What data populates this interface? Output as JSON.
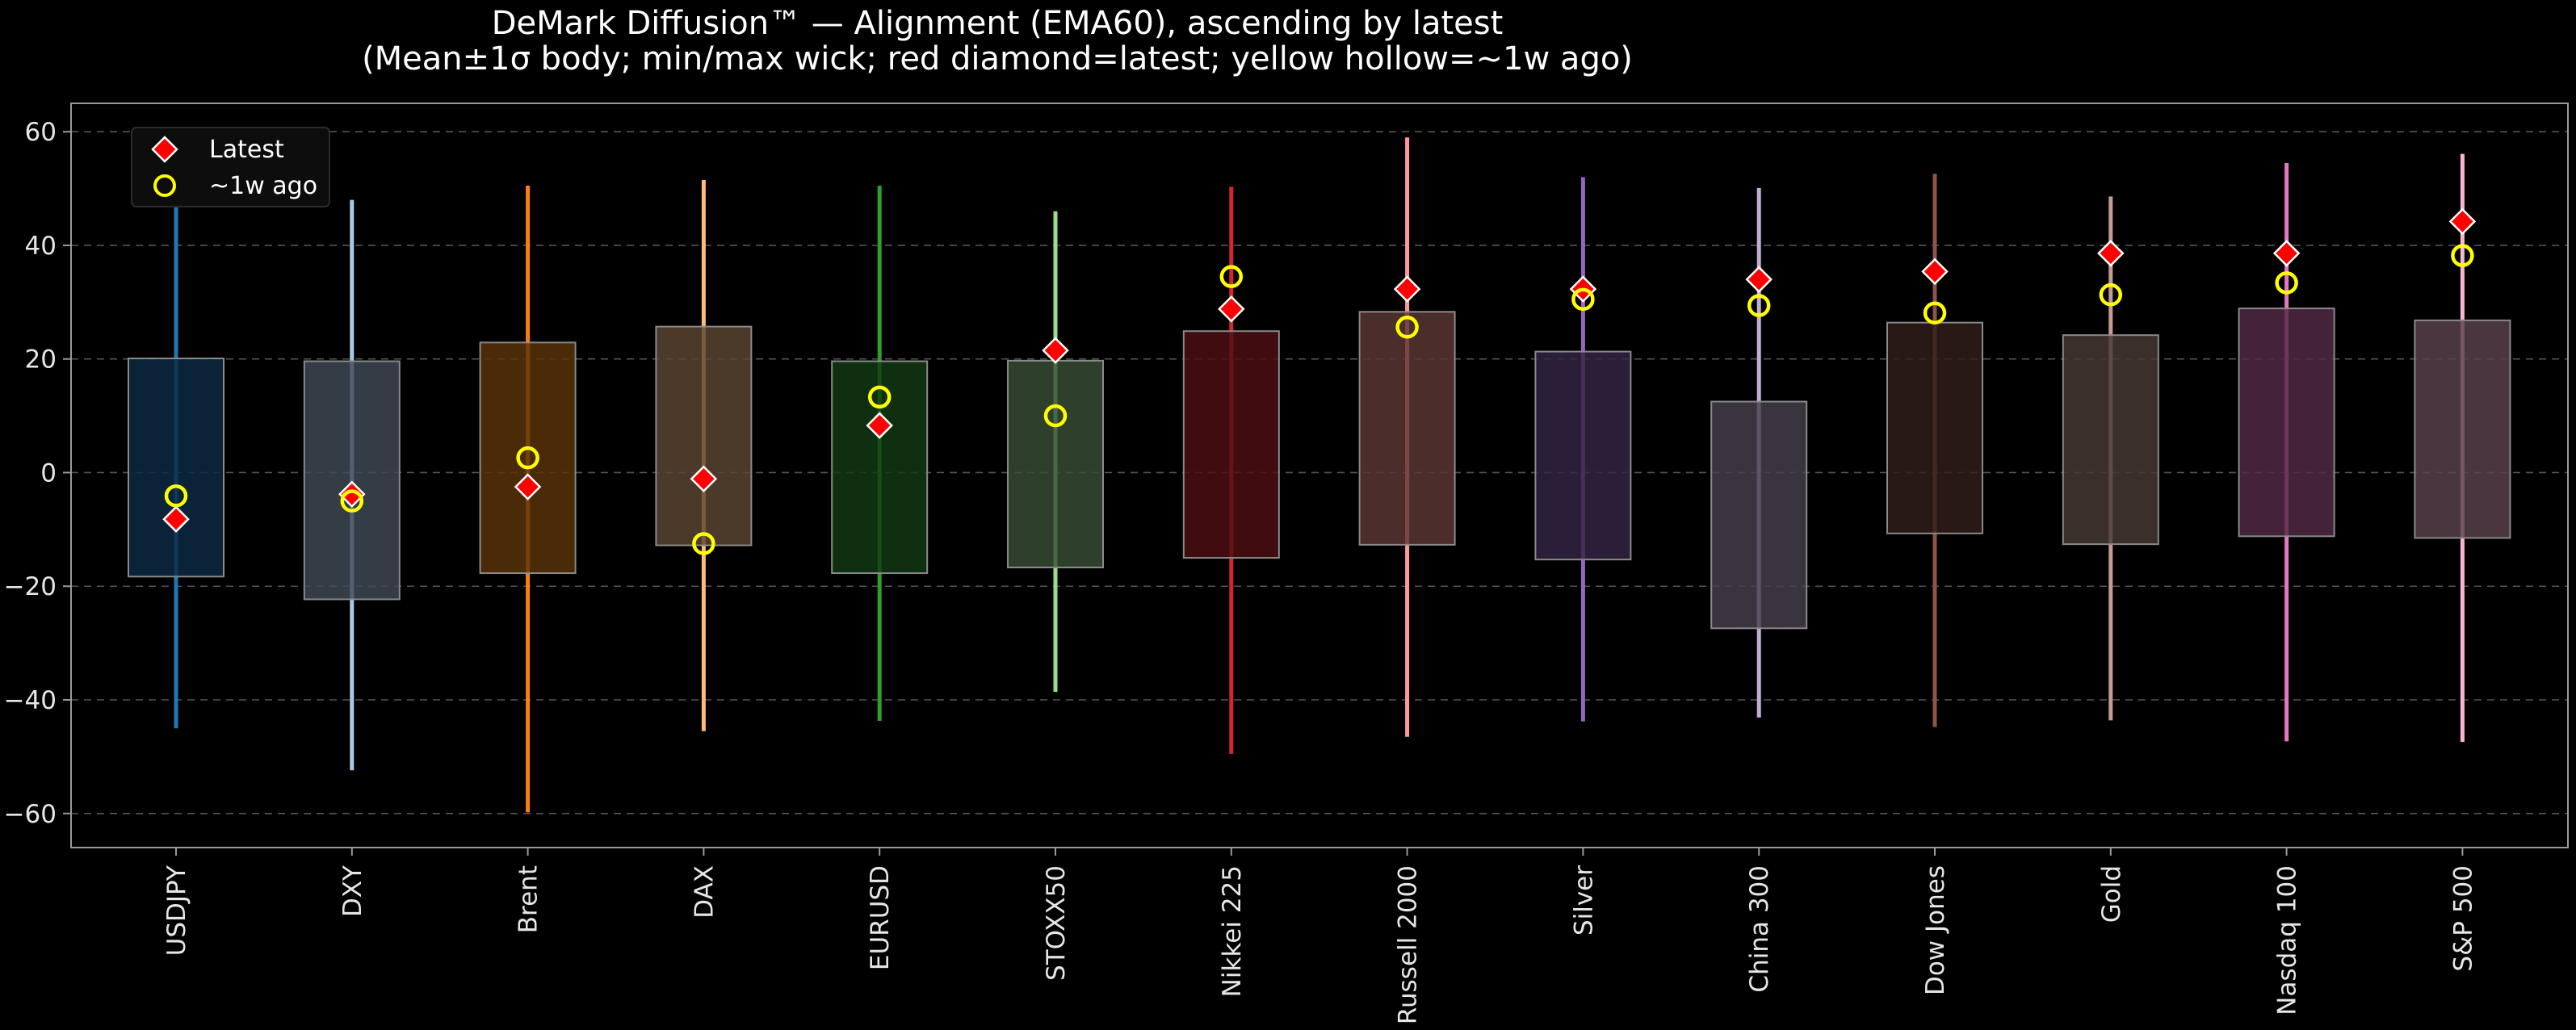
{
  "chart_data": {
    "type": "box",
    "title": "DeMark Diffusion™ — Alignment (EMA60), ascending by latest",
    "subtitle": "(Mean±1σ body; min/max wick; red diamond=latest; yellow hollow=~1w ago)",
    "xlabel": "",
    "ylabel": "",
    "ylim": [
      -66,
      65
    ],
    "yticks": [
      60,
      40,
      20,
      0,
      -20,
      -40,
      -60
    ],
    "grid": "horizontal dashed",
    "legend": {
      "position": "top-left",
      "entries": [
        "Latest",
        "~1w ago"
      ]
    },
    "marker_colors": {
      "latest": "#ff0000",
      "week_ago": "#ffff00"
    },
    "categories": [
      "USDJPY",
      "DXY",
      "Brent",
      "DAX",
      "EURUSD",
      "STOXX50",
      "Nikkei 225",
      "Russell 2000",
      "Silver",
      "China 300",
      "Dow Jones",
      "Gold",
      "Nasdaq 100",
      "S&P 500"
    ],
    "series": [
      {
        "name": "USDJPY",
        "body_low": -18.3,
        "body_high": 20.1,
        "min": -45.0,
        "max": 49.0,
        "latest": -8.2,
        "week_ago": -4.1,
        "color": "#1f77b4",
        "body_color": "#0c2b44"
      },
      {
        "name": "DXY",
        "body_low": -22.3,
        "body_high": 19.6,
        "min": -52.4,
        "max": 48.0,
        "latest": -3.8,
        "week_ago": -5.0,
        "color": "#aec7e8",
        "body_color": "#404955"
      },
      {
        "name": "Brent",
        "body_low": -17.7,
        "body_high": 22.9,
        "min": -59.8,
        "max": 50.5,
        "latest": -2.5,
        "week_ago": 2.6,
        "color": "#ff7f0e",
        "body_color": "#5a3309"
      },
      {
        "name": "DAX",
        "body_low": -12.8,
        "body_high": 25.7,
        "min": -45.5,
        "max": 51.5,
        "latest": -1.1,
        "week_ago": -12.5,
        "color": "#ffbb78",
        "body_color": "#5c4633"
      },
      {
        "name": "EURUSD",
        "body_low": -17.7,
        "body_high": 19.6,
        "min": -43.7,
        "max": 50.5,
        "latest": 8.3,
        "week_ago": 13.3,
        "color": "#2ca02c",
        "body_color": "#113b14"
      },
      {
        "name": "STOXX50",
        "body_low": -16.7,
        "body_high": 19.7,
        "min": -38.6,
        "max": 46.0,
        "latest": 21.5,
        "week_ago": 10.0,
        "color": "#98df8a",
        "body_color": "#384e36"
      },
      {
        "name": "Nikkei 225",
        "body_low": -15.0,
        "body_high": 24.9,
        "min": -49.5,
        "max": 50.3,
        "latest": 28.8,
        "week_ago": 34.5,
        "color": "#d62728",
        "body_color": "#4e0f12"
      },
      {
        "name": "Russell 2000",
        "body_low": -12.7,
        "body_high": 28.3,
        "min": -46.5,
        "max": 59.0,
        "latest": 32.3,
        "week_ago": 25.6,
        "color": "#ff9896",
        "body_color": "#5c3736"
      },
      {
        "name": "Silver",
        "body_low": -15.3,
        "body_high": 21.3,
        "min": -43.8,
        "max": 52.0,
        "latest": 32.3,
        "week_ago": 30.5,
        "color": "#9467bd",
        "body_color": "#352446"
      },
      {
        "name": "China 300",
        "body_low": -27.4,
        "body_high": 12.5,
        "min": -43.1,
        "max": 50.1,
        "latest": 34.0,
        "week_ago": 29.4,
        "color": "#c5b0d5",
        "body_color": "#47404d"
      },
      {
        "name": "Dow Jones",
        "body_low": -10.7,
        "body_high": 26.4,
        "min": -44.8,
        "max": 52.6,
        "latest": 35.4,
        "week_ago": 28.1,
        "color": "#8c564b",
        "body_color": "#321e1b"
      },
      {
        "name": "Gold",
        "body_low": -12.6,
        "body_high": 24.2,
        "min": -43.6,
        "max": 48.6,
        "latest": 38.6,
        "week_ago": 31.3,
        "color": "#c49c94",
        "body_color": "#473935"
      },
      {
        "name": "Nasdaq 100",
        "body_low": -11.2,
        "body_high": 28.9,
        "min": -47.3,
        "max": 54.5,
        "latest": 38.6,
        "week_ago": 33.4,
        "color": "#e377c2",
        "body_color": "#532a46"
      },
      {
        "name": "S&P 500",
        "body_low": -11.5,
        "body_high": 26.8,
        "min": -47.4,
        "max": 56.1,
        "latest": 44.2,
        "week_ago": 38.2,
        "color": "#f7b6d2",
        "body_color": "#5a424d"
      }
    ]
  }
}
